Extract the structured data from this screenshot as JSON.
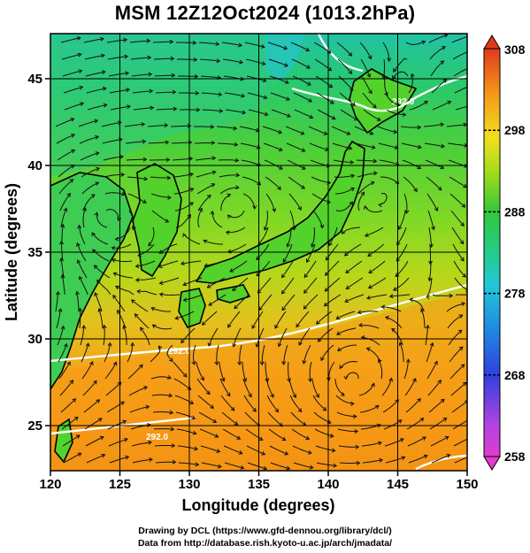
{
  "title": "MSM 12Z12Oct2024 (1013.2hPa)",
  "map": {
    "xlabel": "Longitude (degrees)",
    "ylabel": "Latitude  (degrees)",
    "lon_range": [
      120,
      150
    ],
    "lat_range": [
      22.4,
      47.6
    ],
    "lon_ticks": [
      "120",
      "125",
      "130",
      "135",
      "140",
      "145",
      "150"
    ],
    "lat_ticks": [
      "25",
      "30",
      "35",
      "40",
      "45"
    ],
    "lon_tick_values": [
      120,
      125,
      130,
      135,
      140,
      145,
      150
    ],
    "lat_tick_values": [
      25,
      30,
      35,
      40,
      45
    ],
    "grid": true
  },
  "colorbar": {
    "min": 258,
    "max": 308,
    "labels": [
      "308",
      "298",
      "288",
      "278",
      "268",
      "258"
    ],
    "label_values": [
      308,
      298,
      288,
      278,
      268,
      258
    ]
  },
  "contour_labels": [
    "292.0",
    "292.0",
    "292.0"
  ],
  "credits": {
    "line1": "Drawing by DCL (https://www.gfd-dennou.org/library/dcl/)",
    "line2": "Data from http://database.rish.kyoto-u.ac.jp/arch/jmadata/"
  },
  "colors": {
    "cold": "#d43fd0",
    "cool": "#1e5bd8",
    "mid": "#22c8c8",
    "temperate": "#2dc845",
    "warm": "#9bdc1c",
    "hot": "#f2a21a",
    "hottest": "#e33b1f",
    "land_outline": "#000000",
    "contour": "#ffffff"
  }
}
